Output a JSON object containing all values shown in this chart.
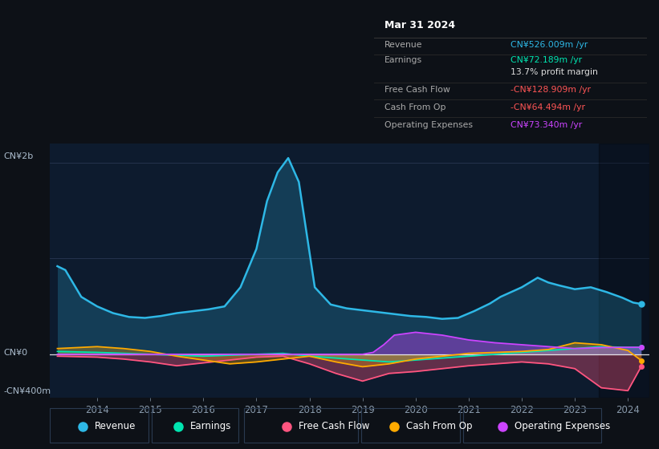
{
  "background_color": "#0d1117",
  "plot_bg": "#0d1b2e",
  "y_label_top": "CN¥2b",
  "y_label_zero": "CN¥0",
  "y_label_bottom": "-CN¥400m",
  "x_ticks": [
    "2014",
    "2015",
    "2016",
    "2017",
    "2018",
    "2019",
    "2020",
    "2021",
    "2022",
    "2023",
    "2024"
  ],
  "legend": [
    {
      "label": "Revenue",
      "color": "#2eb8e6"
    },
    {
      "label": "Earnings",
      "color": "#00e5b0"
    },
    {
      "label": "Free Cash Flow",
      "color": "#ff5580"
    },
    {
      "label": "Cash From Op",
      "color": "#ffaa00"
    },
    {
      "label": "Operating Expenses",
      "color": "#cc44ff"
    }
  ],
  "info_box": {
    "title": "Mar 31 2024",
    "rows": [
      {
        "label": "Revenue",
        "value": "CN¥526.009m /yr",
        "value_color": "#2eb8e6"
      },
      {
        "label": "Earnings",
        "value": "CN¥72.189m /yr",
        "value_color": "#00e5b0"
      },
      {
        "label": "",
        "value": "13.7% profit margin",
        "value_color": "#dddddd"
      },
      {
        "label": "Free Cash Flow",
        "value": "-CN¥128.909m /yr",
        "value_color": "#ff5555"
      },
      {
        "label": "Cash From Op",
        "value": "-CN¥64.494m /yr",
        "value_color": "#ff5555"
      },
      {
        "label": "Operating Expenses",
        "value": "CN¥73.340m /yr",
        "value_color": "#cc44ff"
      }
    ]
  },
  "revenue_x": [
    2013.25,
    2013.4,
    2013.7,
    2014.0,
    2014.3,
    2014.6,
    2014.9,
    2015.2,
    2015.5,
    2015.8,
    2016.1,
    2016.4,
    2016.7,
    2017.0,
    2017.2,
    2017.4,
    2017.6,
    2017.8,
    2018.1,
    2018.4,
    2018.7,
    2019.0,
    2019.3,
    2019.6,
    2019.9,
    2020.2,
    2020.5,
    2020.8,
    2021.1,
    2021.4,
    2021.6,
    2021.8,
    2022.0,
    2022.3,
    2022.5,
    2022.7,
    2023.0,
    2023.3,
    2023.6,
    2023.9,
    2024.1,
    2024.25
  ],
  "revenue_y": [
    920,
    880,
    600,
    500,
    430,
    390,
    380,
    400,
    430,
    450,
    470,
    500,
    700,
    1100,
    1600,
    1900,
    2050,
    1800,
    700,
    520,
    480,
    460,
    440,
    420,
    400,
    390,
    370,
    380,
    450,
    530,
    600,
    650,
    700,
    800,
    750,
    720,
    680,
    700,
    650,
    590,
    540,
    526
  ],
  "earnings_x": [
    2013.25,
    2014.0,
    2014.5,
    2015.0,
    2015.5,
    2016.0,
    2016.5,
    2017.0,
    2017.5,
    2018.0,
    2018.5,
    2019.0,
    2019.5,
    2020.0,
    2020.5,
    2021.0,
    2021.5,
    2022.0,
    2022.5,
    2023.0,
    2023.5,
    2024.0,
    2024.25
  ],
  "earnings_y": [
    30,
    20,
    10,
    0,
    -10,
    -20,
    -10,
    0,
    10,
    -20,
    -40,
    -60,
    -80,
    -60,
    -40,
    -20,
    0,
    20,
    40,
    60,
    80,
    72,
    72
  ],
  "fcf_x": [
    2013.25,
    2014.0,
    2014.5,
    2015.0,
    2015.5,
    2016.0,
    2016.5,
    2017.0,
    2017.5,
    2018.0,
    2018.5,
    2019.0,
    2019.5,
    2020.0,
    2020.5,
    2021.0,
    2021.5,
    2022.0,
    2022.5,
    2023.0,
    2023.5,
    2024.0,
    2024.25
  ],
  "fcf_y": [
    -20,
    -30,
    -50,
    -80,
    -120,
    -90,
    -60,
    -30,
    -20,
    -100,
    -200,
    -280,
    -200,
    -180,
    -150,
    -120,
    -100,
    -80,
    -100,
    -150,
    -350,
    -380,
    -129
  ],
  "cop_x": [
    2013.25,
    2014.0,
    2014.5,
    2015.0,
    2015.5,
    2016.0,
    2016.5,
    2017.0,
    2017.5,
    2018.0,
    2018.5,
    2019.0,
    2019.5,
    2020.0,
    2020.5,
    2021.0,
    2021.5,
    2022.0,
    2022.5,
    2023.0,
    2023.5,
    2024.0,
    2024.25
  ],
  "cop_y": [
    60,
    80,
    60,
    30,
    -20,
    -60,
    -100,
    -80,
    -50,
    -20,
    -80,
    -130,
    -100,
    -50,
    -20,
    10,
    20,
    30,
    50,
    120,
    100,
    40,
    -64
  ],
  "opex_x": [
    2013.25,
    2014.0,
    2014.5,
    2015.0,
    2015.5,
    2016.0,
    2016.5,
    2017.0,
    2017.5,
    2018.0,
    2018.5,
    2019.0,
    2019.2,
    2019.4,
    2019.6,
    2020.0,
    2020.5,
    2021.0,
    2021.5,
    2022.0,
    2022.5,
    2023.0,
    2023.5,
    2024.0,
    2024.25
  ],
  "opex_y": [
    0,
    0,
    0,
    0,
    0,
    0,
    0,
    0,
    0,
    0,
    0,
    0,
    20,
    100,
    200,
    230,
    200,
    150,
    120,
    100,
    80,
    60,
    70,
    73,
    73
  ],
  "ylim": [
    -450,
    2200
  ],
  "xlim": [
    2013.1,
    2024.4
  ],
  "shade_x_start": 2023.45
}
